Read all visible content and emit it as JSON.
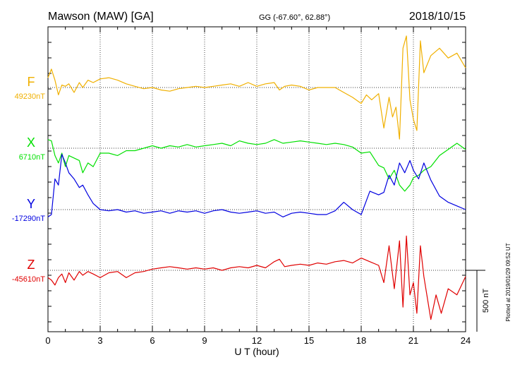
{
  "header": {
    "station": "Mawson (MAW)  [GA]",
    "coords": "GG (-67.60°,  62.88°)",
    "date": "2018/10/15"
  },
  "footer": {
    "plotted": "Plotted at 2019/01/29 09:52 UT"
  },
  "scale_bar": {
    "label": "500 nT",
    "value_nT": 500
  },
  "colors": {
    "F": "#f0b000",
    "X": "#00e000",
    "Y": "#0000e0",
    "Z": "#e00000",
    "grid": "#000000"
  },
  "chart_data": {
    "type": "line",
    "title": "",
    "xlabel": "U T (hour)",
    "ylabel": "",
    "xlim": [
      0,
      24
    ],
    "x_ticks": [
      0,
      3,
      6,
      9,
      12,
      15,
      18,
      21,
      24
    ],
    "x_tick_labels": [
      "0",
      "3",
      "6",
      "9",
      "12",
      "15",
      "18",
      "21",
      "24"
    ],
    "grid": true,
    "units": "nT",
    "series": [
      {
        "name": "F",
        "baseline_label": "49230nT",
        "baseline_nT": 49230,
        "x": [
          0.0,
          0.2,
          0.4,
          0.6,
          0.8,
          1.0,
          1.2,
          1.5,
          1.8,
          2.0,
          2.3,
          2.6,
          3.0,
          3.5,
          4.0,
          4.5,
          5.0,
          5.5,
          6.0,
          6.5,
          7.0,
          7.5,
          8.0,
          8.5,
          9.0,
          9.5,
          10.0,
          10.5,
          11.0,
          11.5,
          12.0,
          12.5,
          13.0,
          13.3,
          13.6,
          14.0,
          14.5,
          15.0,
          15.5,
          16.0,
          16.5,
          17.0,
          17.5,
          18.0,
          18.3,
          18.6,
          19.0,
          19.3,
          19.6,
          19.8,
          20.0,
          20.2,
          20.4,
          20.6,
          20.8,
          21.0,
          21.2,
          21.4,
          21.6,
          22.0,
          22.5,
          23.0,
          23.5,
          24.0
        ],
        "values": [
          80,
          150,
          60,
          -60,
          20,
          10,
          30,
          -40,
          40,
          0,
          60,
          40,
          70,
          80,
          60,
          30,
          10,
          -10,
          0,
          -20,
          -30,
          -10,
          0,
          10,
          0,
          10,
          20,
          30,
          10,
          40,
          10,
          30,
          40,
          -20,
          10,
          20,
          10,
          -20,
          0,
          0,
          0,
          -40,
          -80,
          -130,
          -60,
          -100,
          -50,
          -330,
          -80,
          -240,
          -160,
          -420,
          320,
          420,
          -100,
          -260,
          -350,
          380,
          120,
          260,
          320,
          240,
          280,
          160
        ]
      },
      {
        "name": "X",
        "baseline_label": "6710nT",
        "baseline_nT": 6710,
        "x": [
          0.0,
          0.2,
          0.4,
          0.6,
          0.8,
          1.0,
          1.2,
          1.5,
          1.8,
          2.0,
          2.3,
          2.6,
          3.0,
          3.5,
          4.0,
          4.5,
          5.0,
          5.5,
          6.0,
          6.5,
          7.0,
          7.5,
          8.0,
          8.5,
          9.0,
          9.5,
          10.0,
          10.5,
          11.0,
          11.5,
          12.0,
          12.5,
          13.0,
          13.5,
          14.0,
          14.5,
          15.0,
          15.5,
          16.0,
          16.5,
          17.0,
          17.5,
          18.0,
          18.5,
          19.0,
          19.3,
          19.6,
          19.9,
          20.2,
          20.5,
          20.8,
          21.0,
          21.3,
          21.6,
          22.0,
          22.5,
          23.0,
          23.5,
          24.0
        ],
        "values": [
          70,
          60,
          -60,
          -120,
          -40,
          -150,
          -60,
          -80,
          -100,
          -200,
          -120,
          -150,
          -40,
          -40,
          -60,
          -20,
          -20,
          0,
          20,
          0,
          20,
          10,
          30,
          10,
          20,
          30,
          40,
          20,
          60,
          40,
          30,
          40,
          70,
          40,
          50,
          60,
          50,
          40,
          30,
          40,
          30,
          10,
          -40,
          -30,
          -140,
          -160,
          -250,
          -180,
          -300,
          -350,
          -300,
          -240,
          -220,
          -180,
          -150,
          -60,
          -10,
          40,
          -10
        ]
      },
      {
        "name": "Y",
        "baseline_label": "-17290nT",
        "baseline_nT": -17290,
        "x": [
          0.0,
          0.2,
          0.4,
          0.6,
          0.8,
          1.0,
          1.2,
          1.5,
          1.8,
          2.0,
          2.3,
          2.6,
          3.0,
          3.5,
          4.0,
          4.5,
          5.0,
          5.5,
          6.0,
          6.5,
          7.0,
          7.5,
          8.0,
          8.5,
          9.0,
          9.5,
          10.0,
          10.5,
          11.0,
          11.5,
          12.0,
          12.5,
          13.0,
          13.5,
          14.0,
          14.5,
          15.0,
          15.5,
          16.0,
          16.5,
          17.0,
          17.5,
          18.0,
          18.5,
          19.0,
          19.3,
          19.6,
          19.9,
          20.2,
          20.5,
          20.8,
          21.0,
          21.3,
          21.6,
          22.0,
          22.5,
          23.0,
          23.5,
          24.0
        ],
        "values": [
          -60,
          -40,
          250,
          200,
          450,
          380,
          300,
          250,
          180,
          200,
          120,
          50,
          0,
          -10,
          0,
          -20,
          -10,
          -30,
          -20,
          -10,
          -30,
          -10,
          -20,
          -10,
          -30,
          -10,
          0,
          -20,
          -30,
          -20,
          -10,
          -30,
          -20,
          -60,
          -30,
          -20,
          -30,
          -40,
          -40,
          -10,
          60,
          0,
          -40,
          150,
          120,
          140,
          280,
          200,
          380,
          300,
          400,
          320,
          250,
          380,
          240,
          110,
          60,
          30,
          0
        ]
      },
      {
        "name": "Z",
        "baseline_label": "-45610nT",
        "baseline_nT": -45610,
        "x": [
          0.0,
          0.2,
          0.4,
          0.6,
          0.8,
          1.0,
          1.2,
          1.5,
          1.8,
          2.0,
          2.3,
          2.6,
          3.0,
          3.5,
          4.0,
          4.5,
          5.0,
          5.5,
          6.0,
          6.5,
          7.0,
          7.5,
          8.0,
          8.5,
          9.0,
          9.5,
          10.0,
          10.5,
          11.0,
          11.5,
          12.0,
          12.5,
          13.0,
          13.3,
          13.6,
          14.0,
          14.5,
          15.0,
          15.5,
          16.0,
          16.5,
          17.0,
          17.5,
          18.0,
          18.5,
          19.0,
          19.3,
          19.6,
          19.9,
          20.2,
          20.4,
          20.6,
          20.8,
          21.0,
          21.2,
          21.4,
          21.6,
          22.0,
          22.3,
          22.6,
          23.0,
          23.5,
          24.0
        ],
        "values": [
          -60,
          -80,
          -120,
          -60,
          -30,
          -100,
          -20,
          -80,
          -10,
          -40,
          -10,
          -30,
          -60,
          -20,
          -10,
          -60,
          -20,
          -10,
          10,
          20,
          30,
          20,
          10,
          20,
          10,
          20,
          0,
          20,
          30,
          20,
          40,
          20,
          70,
          90,
          30,
          40,
          50,
          40,
          60,
          50,
          70,
          80,
          60,
          100,
          70,
          40,
          -100,
          200,
          -150,
          240,
          -300,
          280,
          -200,
          -100,
          -350,
          200,
          -50,
          -400,
          -200,
          -350,
          -150,
          -200,
          -50
        ]
      }
    ]
  }
}
